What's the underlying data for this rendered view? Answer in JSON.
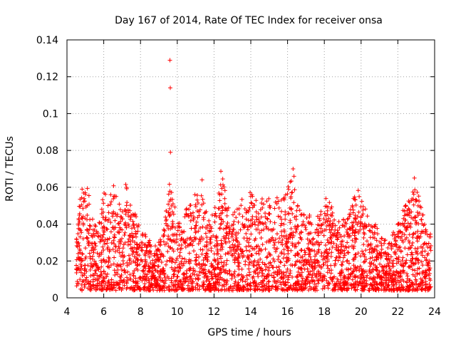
{
  "chart_data": {
    "type": "scatter",
    "title": "Day 167 of 2014, Rate Of TEC Index for receiver onsa",
    "xlabel": "GPS time / hours",
    "ylabel": "ROTI / TECUs",
    "xlim": [
      4,
      24
    ],
    "ylim": [
      0,
      0.14
    ],
    "x_ticks": [
      "4",
      "6",
      "8",
      "10",
      "12",
      "14",
      "16",
      "18",
      "20",
      "22",
      "24"
    ],
    "y_ticks": [
      "0",
      "0.02",
      "0.04",
      "0.06",
      "0.08",
      "0.1",
      "0.12",
      "0.14"
    ],
    "grid": true,
    "marker": "+",
    "color": "#ff0000",
    "series": [
      {
        "name": "ROTI",
        "envelope": {
          "description": "approximate upper envelope of the dense ROTI point cloud (hours, TECU/s)",
          "x": [
            4.5,
            4.7,
            4.9,
            5.1,
            5.3,
            5.6,
            5.9,
            6.1,
            6.3,
            6.5,
            6.7,
            7.0,
            7.2,
            7.4,
            7.7,
            8.0,
            8.3,
            8.6,
            8.9,
            9.2,
            9.5,
            9.7,
            10.0,
            10.3,
            10.6,
            10.9,
            11.2,
            11.5,
            11.8,
            12.1,
            12.4,
            12.7,
            13.0,
            13.3,
            13.6,
            13.9,
            14.2,
            14.5,
            14.8,
            15.1,
            15.4,
            15.7,
            16.0,
            16.3,
            16.6,
            16.9,
            17.2,
            17.5,
            17.8,
            18.1,
            18.4,
            18.7,
            19.0,
            19.3,
            19.6,
            19.9,
            20.2,
            20.5,
            20.8,
            21.1,
            21.4,
            21.7,
            22.0,
            22.3,
            22.6,
            22.9,
            23.2,
            23.5,
            23.8
          ],
          "y": [
            0.03,
            0.055,
            0.063,
            0.067,
            0.045,
            0.04,
            0.052,
            0.064,
            0.05,
            0.066,
            0.058,
            0.05,
            0.071,
            0.055,
            0.046,
            0.04,
            0.035,
            0.03,
            0.03,
            0.033,
            0.06,
            0.066,
            0.04,
            0.045,
            0.05,
            0.055,
            0.06,
            0.05,
            0.04,
            0.055,
            0.071,
            0.055,
            0.045,
            0.05,
            0.055,
            0.058,
            0.058,
            0.05,
            0.06,
            0.05,
            0.055,
            0.055,
            0.06,
            0.07,
            0.05,
            0.045,
            0.045,
            0.04,
            0.05,
            0.055,
            0.05,
            0.04,
            0.045,
            0.045,
            0.055,
            0.06,
            0.05,
            0.04,
            0.04,
            0.035,
            0.03,
            0.035,
            0.04,
            0.05,
            0.055,
            0.06,
            0.055,
            0.04,
            0.035
          ]
        },
        "outliers": {
          "x": [
            9.6,
            9.62,
            9.63,
            16.3,
            16.35,
            22.9,
            11.35
          ],
          "y": [
            0.129,
            0.114,
            0.079,
            0.07,
            0.066,
            0.065,
            0.064
          ]
        },
        "floor": 0.004
      }
    ]
  }
}
